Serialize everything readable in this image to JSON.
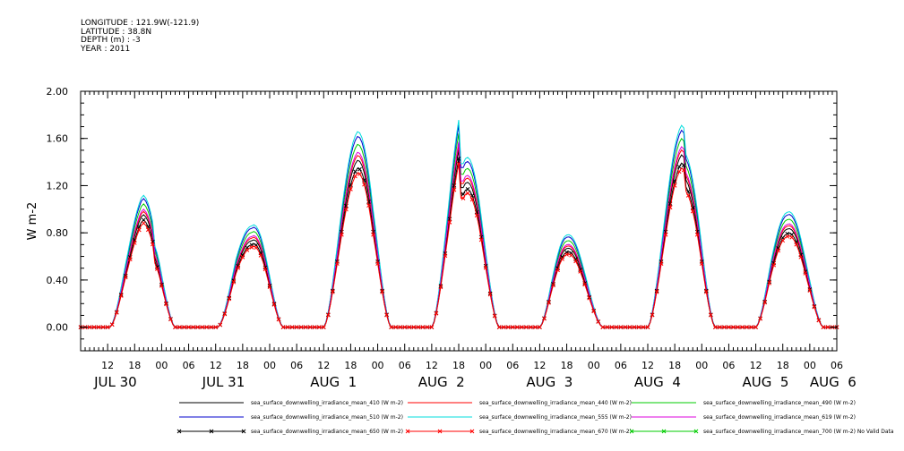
{
  "meta": {
    "longitude": "LONGITUDE : 121.9W(-121.9)",
    "latitude": "LATITUDE : 38.8N",
    "depth": "DEPTH (m) : -3",
    "year": "YEAR : 2011"
  },
  "chart_data": {
    "type": "line",
    "ylabel": "W m-2",
    "ylim": [
      -0.2,
      2.0
    ],
    "yticks": [
      "0.00",
      "0.40",
      "0.80",
      "1.20",
      "1.60",
      "2.00"
    ],
    "xlim": [
      6,
      174
    ],
    "hour_ticks": [
      {
        "x": 12,
        "label": "12"
      },
      {
        "x": 18,
        "label": "18"
      },
      {
        "x": 24,
        "label": "00"
      },
      {
        "x": 30,
        "label": "06"
      },
      {
        "x": 36,
        "label": "12"
      },
      {
        "x": 42,
        "label": "18"
      },
      {
        "x": 48,
        "label": "00"
      },
      {
        "x": 54,
        "label": "06"
      },
      {
        "x": 60,
        "label": "12"
      },
      {
        "x": 66,
        "label": "18"
      },
      {
        "x": 72,
        "label": "00"
      },
      {
        "x": 78,
        "label": "06"
      },
      {
        "x": 84,
        "label": "12"
      },
      {
        "x": 90,
        "label": "18"
      },
      {
        "x": 96,
        "label": "00"
      },
      {
        "x": 102,
        "label": "06"
      },
      {
        "x": 108,
        "label": "12"
      },
      {
        "x": 114,
        "label": "18"
      },
      {
        "x": 120,
        "label": "00"
      },
      {
        "x": 126,
        "label": "06"
      },
      {
        "x": 132,
        "label": "12"
      },
      {
        "x": 138,
        "label": "18"
      },
      {
        "x": 144,
        "label": "00"
      },
      {
        "x": 150,
        "label": "06"
      },
      {
        "x": 156,
        "label": "12"
      },
      {
        "x": 162,
        "label": "18"
      },
      {
        "x": 168,
        "label": "00"
      },
      {
        "x": 174,
        "label": "06"
      }
    ],
    "date_labels": [
      {
        "x": 9,
        "label": "JUL 30"
      },
      {
        "x": 33,
        "label": "JUL 31"
      },
      {
        "x": 57,
        "label": "AUG  1"
      },
      {
        "x": 81,
        "label": "AUG  2"
      },
      {
        "x": 105,
        "label": "AUG  3"
      },
      {
        "x": 129,
        "label": "AUG  4"
      },
      {
        "x": 153,
        "label": "AUG  5"
      },
      {
        "x": 168,
        "label": "AUG  6"
      }
    ],
    "days": [
      {
        "start": 12.5,
        "peak": 19.8,
        "end": 27.0,
        "max": 0.8,
        "spike": 0.35
      },
      {
        "start": 36.5,
        "peak": 44.0,
        "end": 51.0,
        "max": 0.75,
        "spike": 0.22
      },
      {
        "start": 60.0,
        "peak": 67.5,
        "end": 75.0,
        "max": 1.3,
        "spike": 0.3
      },
      {
        "start": 84.0,
        "peak": 91.0,
        "end": 99.0,
        "max": 1.33,
        "spike": 0.45
      },
      {
        "start": 108.0,
        "peak": 114.0,
        "end": 122.0,
        "max": 0.65,
        "spike": 0.15
      },
      {
        "start": 132.0,
        "peak": 139.5,
        "end": 147.0,
        "max": 1.3,
        "spike": 0.2
      },
      {
        "start": 156.0,
        "peak": 163.0,
        "end": 171.0,
        "max": 0.82,
        "spike": 0.18
      }
    ],
    "series": [
      {
        "name": "sea_surface_downwelling_irradiance_mean_410 (W m-2)",
        "color": "#000000",
        "scale": 1.05,
        "marker": "none"
      },
      {
        "name": "sea_surface_downwelling_irradiance_mean_440 (W m-2)",
        "color": "#ff0000",
        "scale": 1.08,
        "marker": "none"
      },
      {
        "name": "sea_surface_downwelling_irradiance_mean_490 (W m-2)",
        "color": "#00cc00",
        "scale": 1.15,
        "marker": "none"
      },
      {
        "name": "sea_surface_downwelling_irradiance_mean_510 (W m-2)",
        "color": "#0000cc",
        "scale": 1.2,
        "marker": "none"
      },
      {
        "name": "sea_surface_downwelling_irradiance_mean_555 (W m-2)",
        "color": "#00dddd",
        "scale": 1.23,
        "marker": "none"
      },
      {
        "name": "sea_surface_downwelling_irradiance_mean_619 (W m-2)",
        "color": "#dd00dd",
        "scale": 1.1,
        "marker": "none"
      },
      {
        "name": "sea_surface_downwelling_irradiance_mean_650 (W m-2)",
        "color": "#000000",
        "scale": 1.0,
        "marker": "x"
      },
      {
        "name": "sea_surface_downwelling_irradiance_mean_670 (W m-2)",
        "color": "#ff0000",
        "scale": 0.97,
        "marker": "x"
      },
      {
        "name": "sea_surface_downwelling_irradiance_mean_700 (W m-2) No Valid Data",
        "color": "#00cc00",
        "scale": 0,
        "marker": "x"
      }
    ]
  }
}
